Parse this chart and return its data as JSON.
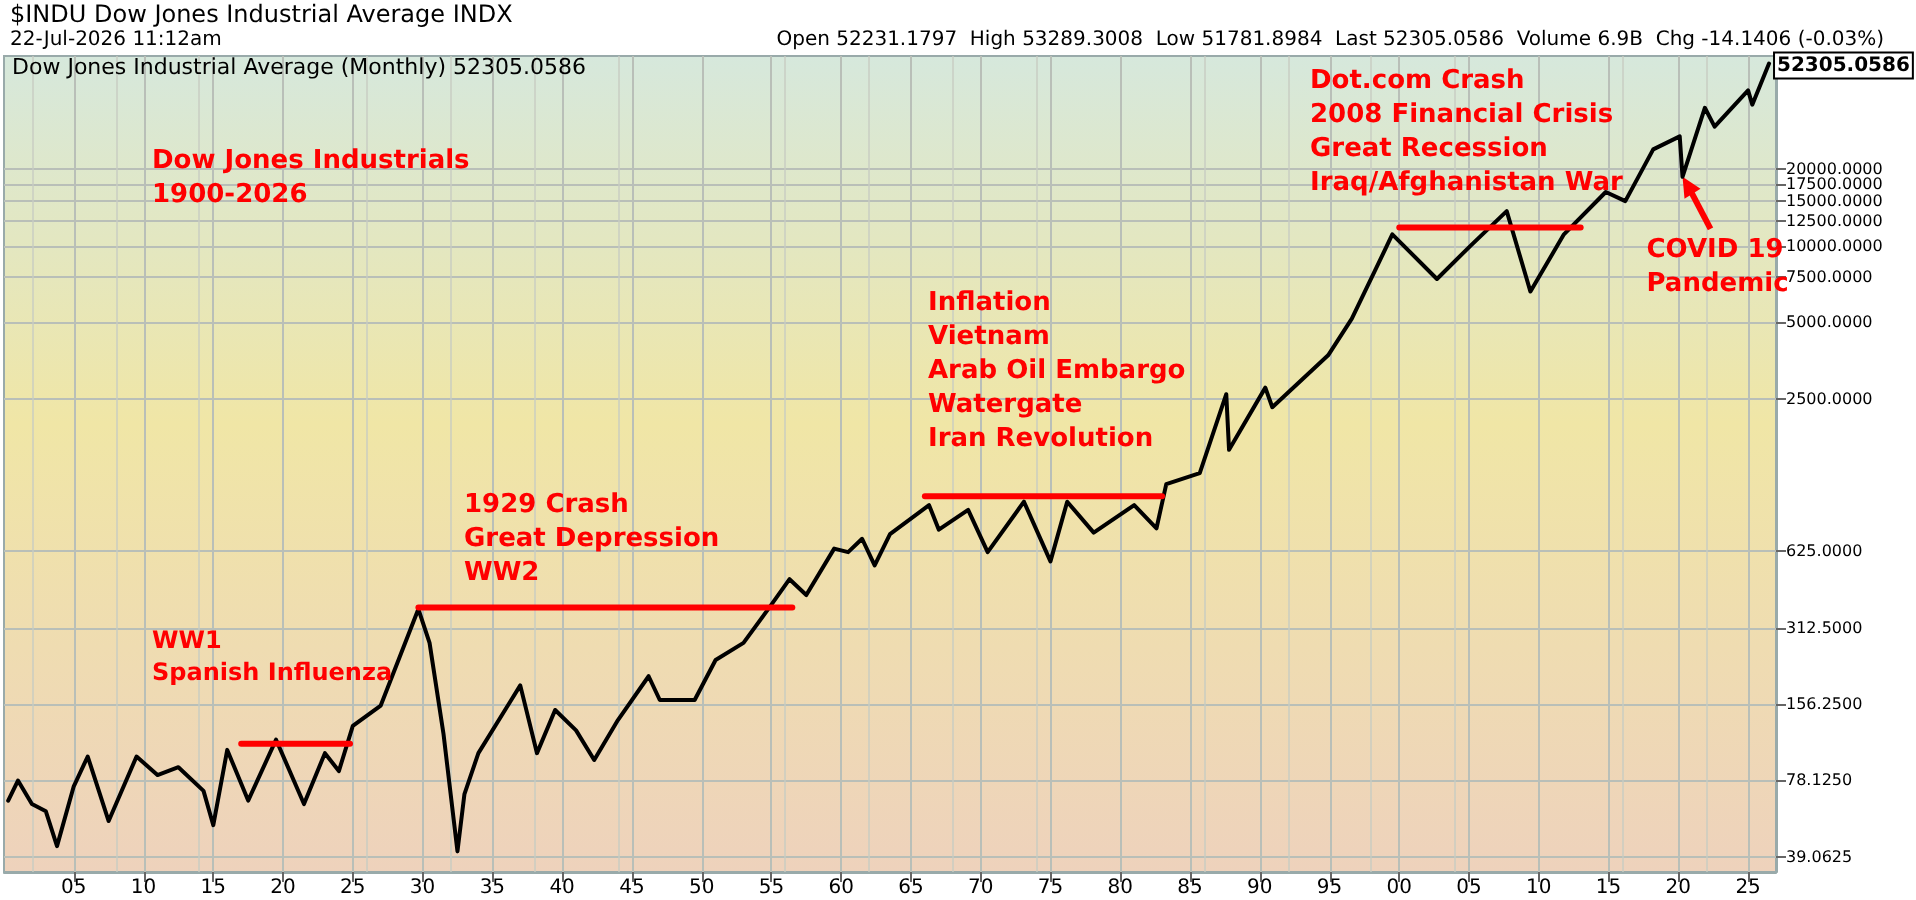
{
  "chart_data": {
    "type": "line",
    "title": "$INDU Dow Jones Industrial Average INDX",
    "subtitle": "22-Jul-2026 11:12am",
    "annotations": [
      "Open 52231.1797  High 53289.3008  Low 51781.8984  Last 52305.0586  Volume 6.9B  Chg -14.1406 (-0.03%)",
      "Dow Jones Industrial Average (Monthly) 52305.0586",
      "Dow Jones Industrials\n1900-2026",
      "WW1\nSpanish Influenza",
      "1929 Crash\nGreat Depression\nWW2",
      "Inflation\nVietnam\nArab Oil Embargo\nWatergate\nIran Revolution",
      "Dot.com Crash\n2008 Financial Crisis\nGreat Recession\nIraq/Afghanistan War",
      {
        "text": "COVID 19\nPandemic",
        "x": 2020.3,
        "y": 18700
      },
      {
        "text": "52305.0586",
        "x": 2026.5,
        "y": 52305.0586
      }
    ],
    "series": [
      {
        "color": "#000000",
        "x": [
          1900.3,
          1901,
          1902,
          1903,
          1903.8,
          1905,
          1906,
          1907.5,
          1909.5,
          1911,
          1912.5,
          1914.3,
          1915,
          1916,
          1917.5,
          1919.5,
          1921.5,
          1923,
          1924,
          1925,
          1927,
          1929.7,
          1930.5,
          1931.5,
          1932.5,
          1933,
          1934,
          1937,
          1938.2,
          1939.5,
          1941,
          1942.3,
          1944,
          1946.2,
          1947,
          1949.5,
          1951,
          1953,
          1955,
          1956.3,
          1957.5,
          1959.5,
          1960.5,
          1961.5,
          1962.4,
          1963.5,
          1966.3,
          1967,
          1969.1,
          1970.5,
          1973.1,
          1975,
          1976.2,
          1978.1,
          1981,
          1982.6,
          1983.3,
          1985.7,
          1987.6,
          1987.8,
          1990.4,
          1990.9,
          1994.9,
          1996.6,
          1998.5,
          1999.5,
          2002.7,
          2005.1,
          2007.7,
          2009.4,
          2011.8,
          2014.8,
          2016.2,
          2018.2,
          2020.1,
          2020.3,
          2021.9,
          2022.6,
          2025,
          2025.3,
          2026.5
        ],
        "values": [
          65,
          78,
          63,
          59,
          43,
          74,
          97,
          54,
          97,
          82,
          88,
          71,
          52,
          103,
          65,
          113,
          63,
          100,
          85,
          128,
          154,
          370,
          272,
          119,
          41,
          69,
          100,
          185,
          100,
          148,
          123,
          94,
          135,
          201,
          162,
          162,
          233,
          272,
          385,
          485,
          420,
          640,
          620,
          700,
          550,
          730,
          950,
          760,
          910,
          620,
          980,
          570,
          980,
          740,
          950,
          770,
          1150,
          1270,
          2600,
          1570,
          2760,
          2310,
          3700,
          5160,
          8500,
          11100,
          7400,
          10000,
          13700,
          6600,
          11100,
          16300,
          15000,
          24000,
          27000,
          18700,
          35000,
          29500,
          41000,
          36000,
          52305.0586
        ]
      },
      {
        "color": "#ff0000",
        "x": [
          1917,
          1924.8
        ],
        "values": [
          109,
          109
        ]
      },
      {
        "color": "#ff0000",
        "x": [
          1929.7,
          1956.5
        ],
        "values": [
          375,
          375
        ]
      },
      {
        "color": "#ff0000",
        "x": [
          1966,
          1983
        ],
        "values": [
          1030,
          1030
        ]
      },
      {
        "color": "#ff0000",
        "x": [
          2000,
          2013
        ],
        "values": [
          11800,
          11800
        ]
      }
    ],
    "log": "y",
    "grid": true,
    "marker": "none",
    "line_style": "solid",
    "xlim": [
      1900,
      2027
    ],
    "xticks": [
      {
        "value": 1905,
        "label": "05"
      },
      {
        "value": 1910,
        "label": "10"
      },
      {
        "value": 1915,
        "label": "15"
      },
      {
        "value": 1920,
        "label": "20"
      },
      {
        "value": 1925,
        "label": "25"
      },
      {
        "value": 1930,
        "label": "30"
      },
      {
        "value": 1935,
        "label": "35"
      },
      {
        "value": 1940,
        "label": "40"
      },
      {
        "value": 1945,
        "label": "45"
      },
      {
        "value": 1950,
        "label": "50"
      },
      {
        "value": 1955,
        "label": "55"
      },
      {
        "value": 1960,
        "label": "60"
      },
      {
        "value": 1965,
        "label": "65"
      },
      {
        "value": 1970,
        "label": "70"
      },
      {
        "value": 1975,
        "label": "75"
      },
      {
        "value": 1980,
        "label": "80"
      },
      {
        "value": 1985,
        "label": "85"
      },
      {
        "value": 1990,
        "label": "90"
      },
      {
        "value": 1995,
        "label": "95"
      },
      {
        "value": 2000,
        "label": "00"
      },
      {
        "value": 2005,
        "label": "05"
      },
      {
        "value": 2010,
        "label": "10"
      },
      {
        "value": 2015,
        "label": "15"
      },
      {
        "value": 2020,
        "label": "20"
      },
      {
        "value": 2025,
        "label": "25"
      }
    ],
    "ylim": [
      34,
      56000
    ],
    "yticks": [
      {
        "value": 39.0625,
        "label": "39.0625"
      },
      {
        "value": 78.125,
        "label": "78.1250"
      },
      {
        "value": 156.25,
        "label": "156.2500"
      },
      {
        "value": 312.5,
        "label": "312.5000"
      },
      {
        "value": 625,
        "label": "625.0000"
      },
      {
        "value": 2500,
        "label": "2500.0000"
      },
      {
        "value": 5000,
        "label": "5000.0000"
      },
      {
        "value": 7500,
        "label": "7500.0000"
      },
      {
        "value": 10000,
        "label": "10000.0000"
      },
      {
        "value": 12500,
        "label": "12500.0000"
      },
      {
        "value": 15000,
        "label": "15000.0000"
      },
      {
        "value": 17500,
        "label": "17500.0000"
      },
      {
        "value": 20000,
        "label": "20000.0000"
      }
    ]
  }
}
